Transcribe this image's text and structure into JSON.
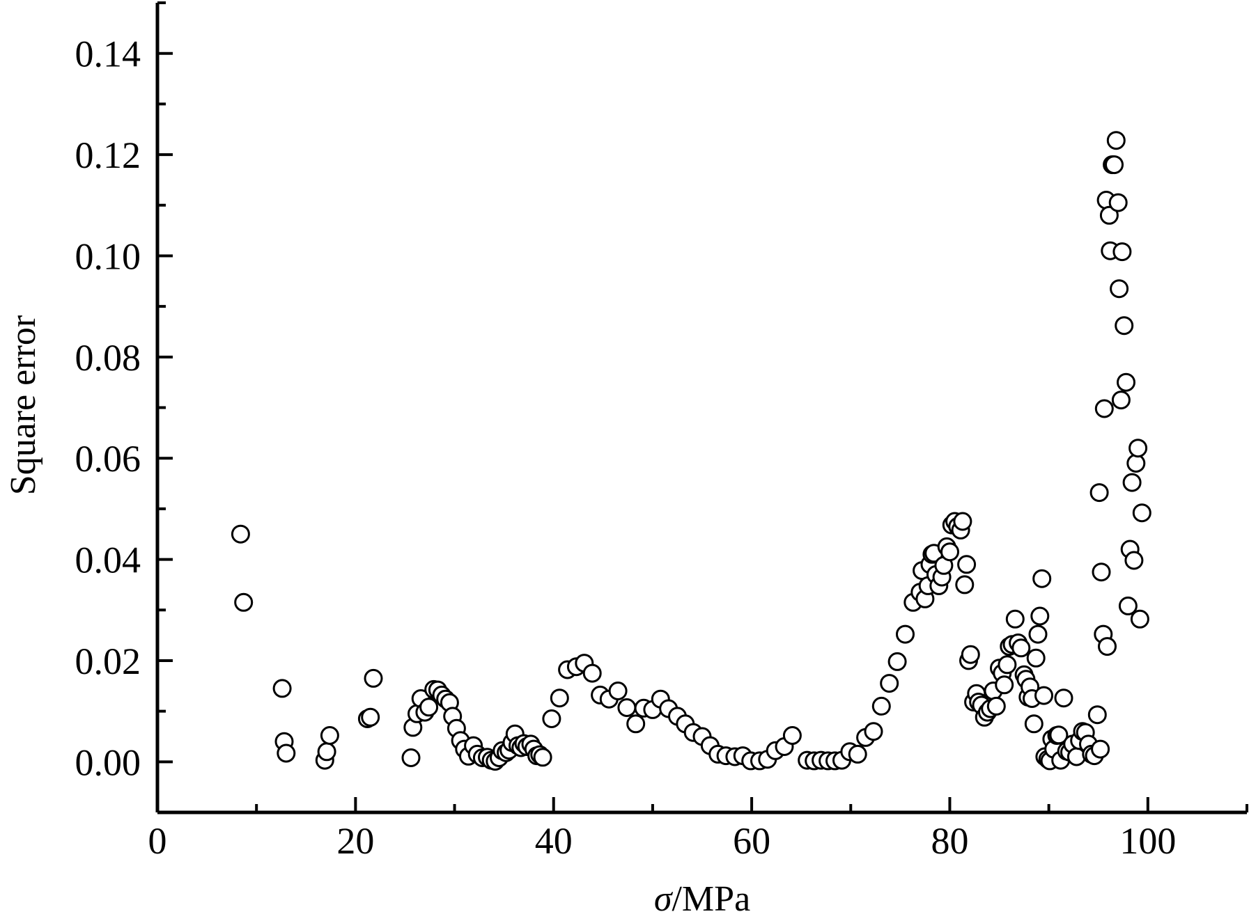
{
  "chart_data": {
    "type": "scatter",
    "xlabel": "σ/MPa",
    "ylabel": "Square error",
    "xlim": [
      0,
      110
    ],
    "ylim": [
      -0.01,
      0.15
    ],
    "x_ticks": [
      0,
      20,
      40,
      60,
      80,
      100
    ],
    "x_tick_labels": [
      "0",
      "20",
      "40",
      "60",
      "80",
      "100"
    ],
    "y_ticks": [
      0.0,
      0.02,
      0.04,
      0.06,
      0.08,
      0.1,
      0.12,
      0.14
    ],
    "y_tick_labels": [
      "0.00",
      "0.02",
      "0.04",
      "0.06",
      "0.08",
      "0.10",
      "0.12",
      "0.14"
    ],
    "grid": false,
    "legend": "none",
    "marker": "open-circle",
    "colors": {
      "marker_edge": "#000000",
      "marker_fill": "#ffffff",
      "axis": "#000000"
    },
    "points": [
      [
        8.4,
        0.045
      ],
      [
        8.7,
        0.0315
      ],
      [
        12.6,
        0.0145
      ],
      [
        12.8,
        0.004
      ],
      [
        13.0,
        0.0017
      ],
      [
        16.9,
        0.0003
      ],
      [
        17.1,
        0.002
      ],
      [
        17.4,
        0.0052
      ],
      [
        21.2,
        0.0085
      ],
      [
        21.5,
        0.0088
      ],
      [
        21.8,
        0.0165
      ],
      [
        25.6,
        0.0008
      ],
      [
        25.8,
        0.0068
      ],
      [
        26.2,
        0.0095
      ],
      [
        26.6,
        0.0125
      ],
      [
        27.0,
        0.0098
      ],
      [
        27.4,
        0.0108
      ],
      [
        27.9,
        0.0143
      ],
      [
        28.3,
        0.0142
      ],
      [
        28.7,
        0.0132
      ],
      [
        29.1,
        0.0124
      ],
      [
        29.5,
        0.0117
      ],
      [
        29.8,
        0.009
      ],
      [
        30.2,
        0.0066
      ],
      [
        30.6,
        0.0042
      ],
      [
        31.0,
        0.0025
      ],
      [
        31.4,
        0.0011
      ],
      [
        31.9,
        0.0032
      ],
      [
        32.3,
        0.0015
      ],
      [
        32.8,
        0.0008
      ],
      [
        33.3,
        0.0009
      ],
      [
        33.7,
        0.0003
      ],
      [
        34.1,
        0.0001
      ],
      [
        34.5,
        0.0008
      ],
      [
        34.8,
        0.0022
      ],
      [
        35.2,
        0.0018
      ],
      [
        35.5,
        0.0023
      ],
      [
        35.8,
        0.0038
      ],
      [
        36.1,
        0.0055
      ],
      [
        36.4,
        0.0032
      ],
      [
        36.7,
        0.0028
      ],
      [
        37.0,
        0.0036
      ],
      [
        37.3,
        0.003
      ],
      [
        37.7,
        0.0035
      ],
      [
        38.0,
        0.0025
      ],
      [
        38.3,
        0.0012
      ],
      [
        38.6,
        0.0014
      ],
      [
        38.9,
        0.0009
      ],
      [
        39.8,
        0.0085
      ],
      [
        40.6,
        0.0126
      ],
      [
        41.4,
        0.0182
      ],
      [
        42.3,
        0.0188
      ],
      [
        43.1,
        0.0195
      ],
      [
        43.9,
        0.0175
      ],
      [
        44.7,
        0.0132
      ],
      [
        45.6,
        0.0124
      ],
      [
        46.5,
        0.014
      ],
      [
        47.4,
        0.0107
      ],
      [
        48.3,
        0.0075
      ],
      [
        49.1,
        0.0106
      ],
      [
        50.0,
        0.0103
      ],
      [
        50.8,
        0.0124
      ],
      [
        51.6,
        0.0105
      ],
      [
        52.5,
        0.009
      ],
      [
        53.3,
        0.0075
      ],
      [
        54.1,
        0.0058
      ],
      [
        55.0,
        0.005
      ],
      [
        55.8,
        0.0032
      ],
      [
        56.6,
        0.0015
      ],
      [
        57.4,
        0.0012
      ],
      [
        58.3,
        0.001
      ],
      [
        59.1,
        0.0012
      ],
      [
        59.9,
        0.0002
      ],
      [
        60.8,
        0.0002
      ],
      [
        61.6,
        0.0005
      ],
      [
        62.4,
        0.0022
      ],
      [
        63.3,
        0.003
      ],
      [
        64.1,
        0.0052
      ],
      [
        65.6,
        0.0003
      ],
      [
        66.3,
        0.0002
      ],
      [
        67.0,
        0.0003
      ],
      [
        67.7,
        0.0002
      ],
      [
        68.4,
        0.0002
      ],
      [
        69.1,
        0.0003
      ],
      [
        69.9,
        0.002
      ],
      [
        70.7,
        0.0015
      ],
      [
        71.5,
        0.0048
      ],
      [
        72.3,
        0.006
      ],
      [
        73.1,
        0.011
      ],
      [
        73.9,
        0.0155
      ],
      [
        74.7,
        0.0198
      ],
      [
        75.5,
        0.0252
      ],
      [
        76.3,
        0.0315
      ],
      [
        77.0,
        0.0335
      ],
      [
        77.2,
        0.0378
      ],
      [
        77.5,
        0.0322
      ],
      [
        77.8,
        0.0348
      ],
      [
        78.0,
        0.039
      ],
      [
        78.2,
        0.041
      ],
      [
        78.4,
        0.0412
      ],
      [
        78.6,
        0.037
      ],
      [
        78.9,
        0.0348
      ],
      [
        79.2,
        0.0365
      ],
      [
        79.4,
        0.0388
      ],
      [
        79.7,
        0.0425
      ],
      [
        80.0,
        0.0415
      ],
      [
        80.2,
        0.0468
      ],
      [
        80.5,
        0.0475
      ],
      [
        80.8,
        0.0465
      ],
      [
        81.1,
        0.0458
      ],
      [
        81.3,
        0.0475
      ],
      [
        81.5,
        0.035
      ],
      [
        81.7,
        0.039
      ],
      [
        81.9,
        0.02
      ],
      [
        82.1,
        0.0212
      ],
      [
        82.4,
        0.0118
      ],
      [
        82.7,
        0.0135
      ],
      [
        82.9,
        0.0118
      ],
      [
        83.2,
        0.0112
      ],
      [
        83.5,
        0.0088
      ],
      [
        83.8,
        0.0098
      ],
      [
        84.1,
        0.0105
      ],
      [
        84.4,
        0.014
      ],
      [
        84.7,
        0.011
      ],
      [
        85.0,
        0.0185
      ],
      [
        85.3,
        0.0175
      ],
      [
        85.5,
        0.0152
      ],
      [
        85.8,
        0.0192
      ],
      [
        86.0,
        0.0228
      ],
      [
        86.3,
        0.0232
      ],
      [
        86.6,
        0.0282
      ],
      [
        86.9,
        0.0235
      ],
      [
        87.2,
        0.0225
      ],
      [
        87.5,
        0.0172
      ],
      [
        87.7,
        0.0163
      ],
      [
        87.9,
        0.0128
      ],
      [
        88.1,
        0.0148
      ],
      [
        88.3,
        0.0125
      ],
      [
        88.5,
        0.0075
      ],
      [
        88.7,
        0.0205
      ],
      [
        88.9,
        0.0252
      ],
      [
        89.1,
        0.0288
      ],
      [
        89.3,
        0.0362
      ],
      [
        89.5,
        0.0131
      ],
      [
        89.6,
        0.001
      ],
      [
        89.9,
        0.0005
      ],
      [
        90.1,
        0.0002
      ],
      [
        90.3,
        0.0045
      ],
      [
        90.5,
        0.0025
      ],
      [
        90.8,
        0.0052
      ],
      [
        91.0,
        0.0053
      ],
      [
        91.2,
        0.0003
      ],
      [
        91.5,
        0.0126
      ],
      [
        91.8,
        0.0021
      ],
      [
        92.1,
        0.0019
      ],
      [
        92.4,
        0.0035
      ],
      [
        92.8,
        0.001
      ],
      [
        93.1,
        0.0042
      ],
      [
        93.4,
        0.006
      ],
      [
        93.7,
        0.0058
      ],
      [
        94.0,
        0.0035
      ],
      [
        94.3,
        0.0015
      ],
      [
        94.6,
        0.0012
      ],
      [
        94.9,
        0.0093
      ],
      [
        95.1,
        0.0532
      ],
      [
        95.2,
        0.0025
      ],
      [
        95.3,
        0.0375
      ],
      [
        95.5,
        0.0252
      ],
      [
        95.6,
        0.0698
      ],
      [
        95.8,
        0.111
      ],
      [
        95.9,
        0.0228
      ],
      [
        96.1,
        0.108
      ],
      [
        96.2,
        0.101
      ],
      [
        96.4,
        0.118
      ],
      [
        96.6,
        0.118
      ],
      [
        96.8,
        0.1228
      ],
      [
        97.0,
        0.1105
      ],
      [
        97.1,
        0.0935
      ],
      [
        97.3,
        0.0715
      ],
      [
        97.4,
        0.1008
      ],
      [
        97.6,
        0.0862
      ],
      [
        97.8,
        0.075
      ],
      [
        98.0,
        0.0308
      ],
      [
        98.2,
        0.042
      ],
      [
        98.4,
        0.0552
      ],
      [
        98.6,
        0.0398
      ],
      [
        98.8,
        0.059
      ],
      [
        99.0,
        0.062
      ],
      [
        99.2,
        0.0282
      ],
      [
        99.4,
        0.0492
      ]
    ]
  }
}
